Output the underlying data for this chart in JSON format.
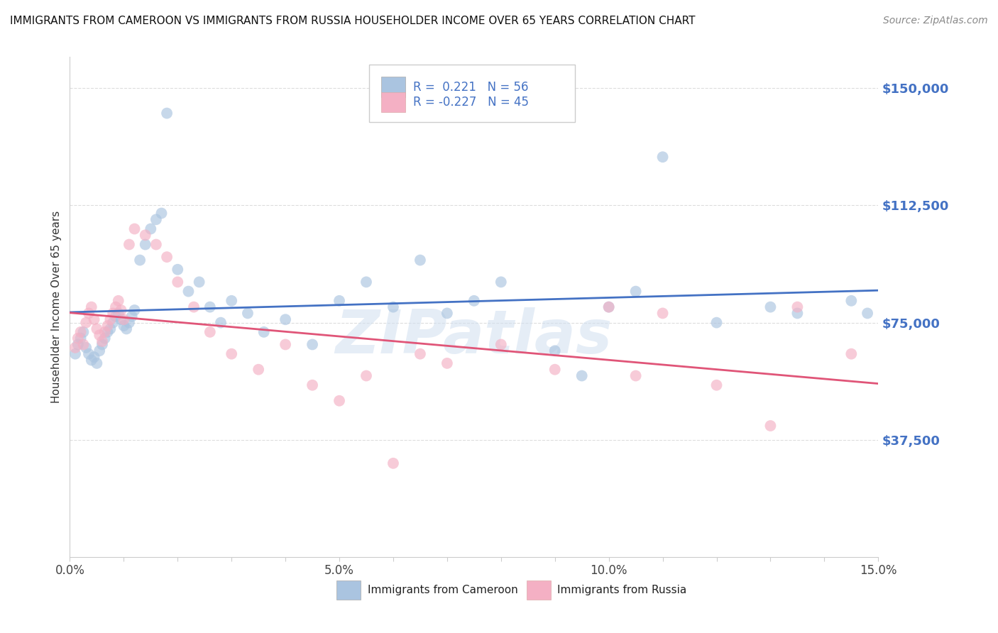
{
  "title": "IMMIGRANTS FROM CAMEROON VS IMMIGRANTS FROM RUSSIA HOUSEHOLDER INCOME OVER 65 YEARS CORRELATION CHART",
  "source": "Source: ZipAtlas.com",
  "ylabel": "Householder Income Over 65 years",
  "xlim": [
    0.0,
    15.0
  ],
  "ylim": [
    0,
    160000
  ],
  "yticks": [
    37500,
    75000,
    112500,
    150000
  ],
  "ytick_labels": [
    "$37,500",
    "$75,000",
    "$112,500",
    "$150,000"
  ],
  "xtick_positions": [
    0,
    1,
    2,
    3,
    4,
    5,
    6,
    7,
    8,
    9,
    10,
    11,
    12,
    13,
    14,
    15
  ],
  "xtick_labels": [
    "0.0%",
    "",
    "",
    "",
    "",
    "5.0%",
    "",
    "",
    "",
    "",
    "10.0%",
    "",
    "",
    "",
    "",
    "15.0%"
  ],
  "legend_r_cameroon": "0.221",
  "legend_n_cameroon": "56",
  "legend_r_russia": "-0.227",
  "legend_n_russia": "45",
  "color_cameroon": "#aac4e0",
  "color_russia": "#f4b0c4",
  "line_color_cameroon": "#4472c4",
  "line_color_russia": "#e05578",
  "ytick_color": "#4472c4",
  "background_color": "#ffffff",
  "grid_color": "#dddddd",
  "title_fontsize": 11,
  "source_fontsize": 10,
  "scatter_size": 130,
  "scatter_alpha": 0.65,
  "cam_x": [
    0.1,
    0.15,
    0.2,
    0.25,
    0.3,
    0.35,
    0.4,
    0.45,
    0.5,
    0.55,
    0.6,
    0.65,
    0.7,
    0.75,
    0.8,
    0.85,
    0.9,
    0.95,
    1.0,
    1.05,
    1.1,
    1.15,
    1.2,
    1.3,
    1.4,
    1.5,
    1.6,
    1.7,
    1.8,
    2.0,
    2.2,
    2.4,
    2.6,
    2.8,
    3.0,
    3.3,
    3.6,
    4.0,
    4.5,
    5.0,
    5.5,
    6.0,
    6.5,
    7.0,
    7.5,
    8.0,
    9.0,
    9.5,
    10.0,
    10.5,
    11.0,
    12.0,
    13.0,
    13.5,
    14.5,
    14.8
  ],
  "cam_y": [
    65000,
    68000,
    70000,
    72000,
    67000,
    65000,
    63000,
    64000,
    62000,
    66000,
    68000,
    70000,
    72000,
    73000,
    75000,
    77000,
    78000,
    76000,
    74000,
    73000,
    75000,
    77000,
    79000,
    95000,
    100000,
    105000,
    108000,
    110000,
    142000,
    92000,
    85000,
    88000,
    80000,
    75000,
    82000,
    78000,
    72000,
    76000,
    68000,
    82000,
    88000,
    80000,
    95000,
    78000,
    82000,
    88000,
    66000,
    58000,
    80000,
    85000,
    128000,
    75000,
    80000,
    78000,
    82000,
    78000
  ],
  "rus_x": [
    0.1,
    0.15,
    0.2,
    0.25,
    0.3,
    0.35,
    0.4,
    0.45,
    0.5,
    0.55,
    0.6,
    0.65,
    0.7,
    0.75,
    0.8,
    0.85,
    0.9,
    0.95,
    1.0,
    1.1,
    1.2,
    1.4,
    1.6,
    1.8,
    2.0,
    2.3,
    2.6,
    3.0,
    3.5,
    4.0,
    4.5,
    5.0,
    5.5,
    6.0,
    6.5,
    7.0,
    8.0,
    9.0,
    10.0,
    10.5,
    11.0,
    12.0,
    13.0,
    13.5,
    14.5
  ],
  "rus_y": [
    67000,
    70000,
    72000,
    68000,
    75000,
    78000,
    80000,
    76000,
    73000,
    71000,
    69000,
    72000,
    74000,
    76000,
    78000,
    80000,
    82000,
    79000,
    76000,
    100000,
    105000,
    103000,
    100000,
    96000,
    88000,
    80000,
    72000,
    65000,
    60000,
    68000,
    55000,
    50000,
    58000,
    30000,
    65000,
    62000,
    68000,
    60000,
    80000,
    58000,
    78000,
    55000,
    42000,
    80000,
    65000
  ]
}
